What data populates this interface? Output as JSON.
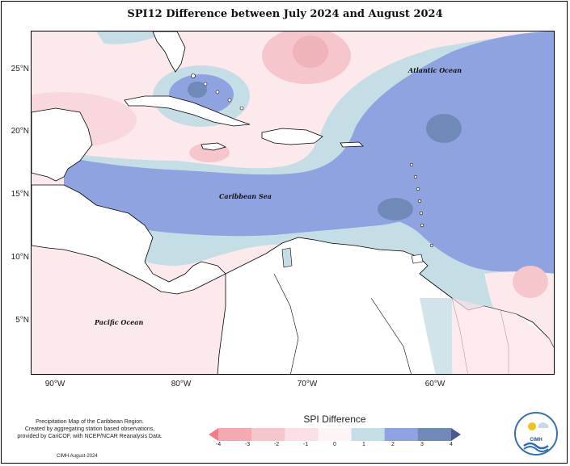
{
  "title": "SPI12 Difference between July 2024 and August 2024",
  "axes": {
    "lat_labels": [
      "25°N",
      "20°N",
      "15°N",
      "10°N",
      "5°N"
    ],
    "lon_labels": [
      "90°W",
      "80°W",
      "70°W",
      "60°W"
    ]
  },
  "map_labels": {
    "atlantic": "Atlantic Ocean",
    "caribbean": "Caribbean Sea",
    "pacific": "Pacific Ocean"
  },
  "legend": {
    "title": "SPI Difference",
    "ticks": [
      "-4",
      "-3",
      "-2",
      "-1",
      "0",
      "1",
      "2",
      "3",
      "4"
    ],
    "colors": [
      "#f47c86",
      "#f7a9b0",
      "#f5c6cc",
      "#fbe1e5",
      "#fdf4f6",
      "#c5dde5",
      "#8fa3e0",
      "#6f89b8",
      "#4c5b8f"
    ]
  },
  "footer": {
    "note_line1": "Precipitation Map of the Caribbean Region.",
    "note_line2": "Created by aggregating station based observations,",
    "note_line3": "provided by CariCOF, with NCEP/NCAR Reanalysis Data.",
    "credit": "CIMH August-2024"
  },
  "logo": {
    "text": "CIMH",
    "colors": {
      "ring": "#3a6fb0",
      "sun": "#f0c419",
      "wave": "#2d6db5"
    }
  },
  "colors": {
    "land_fill": "#ffffff",
    "coast": "#000000"
  }
}
